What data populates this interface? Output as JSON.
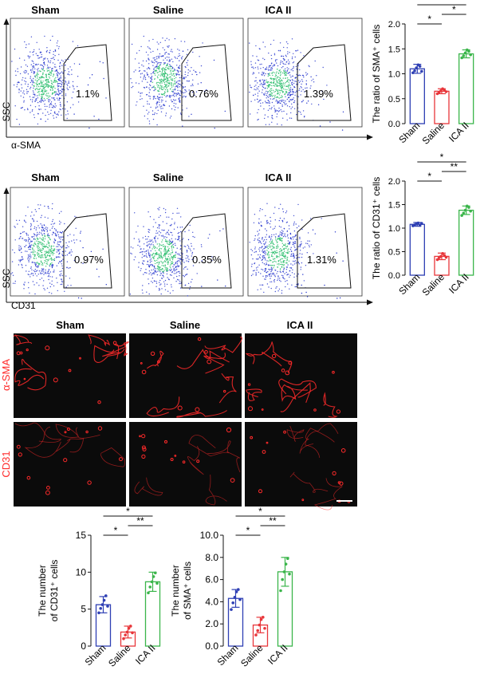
{
  "colors": {
    "sham": "#2e3fb4",
    "saline": "#e8363a",
    "ica": "#3ab54a",
    "dot_blue": "#2233cc",
    "dot_green": "#22bb66",
    "if_red": "#ff2a2a",
    "panel_bg": "#0b0b0b"
  },
  "groups": [
    "Sham",
    "Saline",
    "ICA II"
  ],
  "flow_sma": {
    "x_axis_label": "α-SMA",
    "y_axis_label": "SSC",
    "percents": [
      "1.1%",
      "0.76%",
      "1.39%"
    ]
  },
  "flow_cd31": {
    "x_axis_label": "CD31",
    "y_axis_label": "SSC",
    "percents": [
      "0.97%",
      "0.35%",
      "1.31%"
    ]
  },
  "if_panel": {
    "row_labels": [
      "α-SMA",
      "CD31"
    ]
  },
  "chart_data": [
    {
      "type": "bar",
      "categories": [
        "Sham",
        "Saline",
        "ICA II"
      ],
      "ylabel": "The ratio of SMA⁺ cells",
      "ylim": [
        0,
        2.0
      ],
      "yticks": [
        "0.0",
        "0.5",
        "1.0",
        "1.5",
        "2.0"
      ],
      "values": [
        1.1,
        0.65,
        1.4
      ],
      "errors": [
        0.09,
        0.05,
        0.08
      ],
      "points": [
        [
          1.02,
          1.06,
          1.12,
          1.18,
          1.15,
          1.05
        ],
        [
          0.6,
          0.63,
          0.66,
          0.7,
          0.67,
          0.64
        ],
        [
          1.32,
          1.36,
          1.42,
          1.48,
          1.45,
          1.38
        ]
      ],
      "significance": [
        {
          "from": 0,
          "to": 1,
          "label": "*"
        },
        {
          "from": 0,
          "to": 2,
          "label": "*"
        },
        {
          "from": 1,
          "to": 2,
          "label": "*"
        }
      ]
    },
    {
      "type": "bar",
      "categories": [
        "Sham",
        "Saline",
        "ICA II"
      ],
      "ylabel": "The ratio of CD31⁺ cells",
      "ylim": [
        0,
        2.0
      ],
      "yticks": [
        "0.0",
        "0.5",
        "1.0",
        "1.5",
        "2.0"
      ],
      "values": [
        1.08,
        0.4,
        1.38
      ],
      "errors": [
        0.04,
        0.07,
        0.09
      ],
      "points": [
        [
          1.05,
          1.07,
          1.09,
          1.11,
          1.06,
          1.1
        ],
        [
          0.33,
          0.37,
          0.4,
          0.46,
          0.42,
          0.38
        ],
        [
          1.27,
          1.32,
          1.38,
          1.47,
          1.44,
          1.36
        ]
      ],
      "significance": [
        {
          "from": 0,
          "to": 1,
          "label": "*"
        },
        {
          "from": 0,
          "to": 2,
          "label": "*"
        },
        {
          "from": 1,
          "to": 2,
          "label": "**"
        }
      ]
    },
    {
      "type": "bar",
      "categories": [
        "Sham",
        "Saline",
        "ICA II"
      ],
      "ylabel": "The number of CD31⁺ cells",
      "ylim": [
        0,
        15
      ],
      "yticks": [
        "0",
        "5",
        "10",
        "15"
      ],
      "values": [
        5.6,
        1.9,
        8.7
      ],
      "errors": [
        1.1,
        0.8,
        1.3
      ],
      "points": [
        [
          4.5,
          5.1,
          5.6,
          6.2,
          6.8,
          5.4
        ],
        [
          1.0,
          1.5,
          1.9,
          2.4,
          2.7,
          1.8
        ],
        [
          7.2,
          8.0,
          8.7,
          9.4,
          9.9,
          8.5
        ]
      ],
      "significance": [
        {
          "from": 0,
          "to": 1,
          "label": "*"
        },
        {
          "from": 0,
          "to": 2,
          "label": "*"
        },
        {
          "from": 1,
          "to": 2,
          "label": "**"
        }
      ]
    },
    {
      "type": "bar",
      "categories": [
        "Sham",
        "Saline",
        "ICA II"
      ],
      "ylabel": "The number of SMA⁺ cells",
      "ylim": [
        0,
        10
      ],
      "yticks": [
        "0.0",
        "2.0",
        "4.0",
        "6.0",
        "8.0",
        "10.0"
      ],
      "values": [
        4.3,
        1.9,
        6.7
      ],
      "errors": [
        0.8,
        0.7,
        1.3
      ],
      "points": [
        [
          3.3,
          3.9,
          4.4,
          4.9,
          5.1,
          4.2
        ],
        [
          1.0,
          1.4,
          1.9,
          2.4,
          2.6,
          1.6
        ],
        [
          5.0,
          6.0,
          6.7,
          7.4,
          7.9,
          6.5
        ]
      ],
      "significance": [
        {
          "from": 0,
          "to": 1,
          "label": "*"
        },
        {
          "from": 0,
          "to": 2,
          "label": "*"
        },
        {
          "from": 1,
          "to": 2,
          "label": "**"
        }
      ]
    }
  ]
}
